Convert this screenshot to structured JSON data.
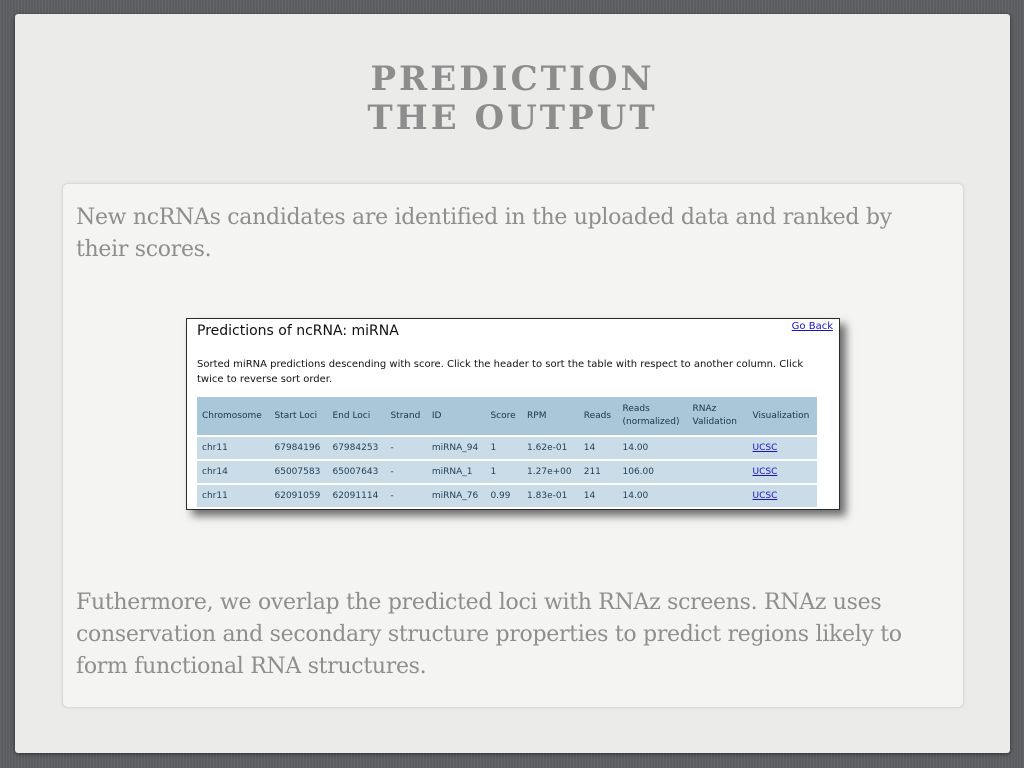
{
  "slide": {
    "title_line1": "PREDICTION",
    "title_line2": "THE OUTPUT",
    "paragraph1": "New ncRNAs candidates are identified in the uploaded data and ranked by their scores.",
    "paragraph2": "Futhermore, we overlap the predicted loci with RNAz screens. RNAz uses conservation and secondary structure properties to predict regions likely to form functional RNA structures."
  },
  "panel": {
    "title": "Predictions of ncRNA: miRNA",
    "go_back": "Go Back",
    "description": "Sorted miRNA predictions descending with score. Click the header to sort the table with respect to another column. Click twice to reverse sort order.",
    "columns": [
      "Chromosome",
      "Start Loci",
      "End Loci",
      "Strand",
      "ID",
      "Score",
      "RPM",
      "Reads",
      "Reads (normalized)",
      "RNAz Validation",
      "Visualization"
    ],
    "rows": [
      [
        "chr11",
        "67984196",
        "67984253",
        "-",
        "miRNA_94",
        "1",
        "1.62e-01",
        "14",
        "14.00",
        "",
        "UCSC"
      ],
      [
        "chr14",
        "65007583",
        "65007643",
        "-",
        "miRNA_1",
        "1",
        "1.27e+00",
        "211",
        "106.00",
        "",
        "UCSC"
      ],
      [
        "chr11",
        "62091059",
        "62091114",
        "-",
        "miRNA_76",
        "0.99",
        "1.83e-01",
        "14",
        "14.00",
        "",
        "UCSC"
      ]
    ]
  },
  "colors": {
    "header_bg": "#a9c7d9",
    "row_bg": "#c9dce8",
    "link": "#1a14c8",
    "title_text": "#8d8d8d"
  }
}
